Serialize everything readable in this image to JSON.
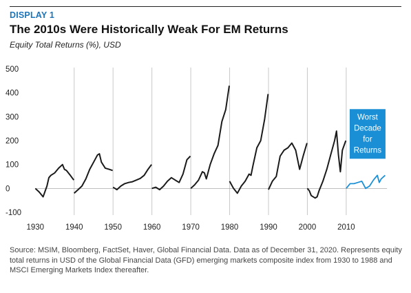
{
  "header": {
    "kicker": "DISPLAY 1",
    "title": "The 2010s Were Historically Weak For EM Returns",
    "subtitle": "Equity Total Returns (%), USD"
  },
  "footer": {
    "source": "Source: MSIM, Bloomberg, FactSet, Haver, Global Financial Data. Data as of December 31, 2020. Represents equity total returns in USD of the Global Financial Data (GFD) emerging markets composite index from 1930 to 1988 and MSCI Emerging Markets Index thereafter."
  },
  "colors": {
    "series": "#1a1a1a",
    "highlight": "#1b8fd6",
    "callout_bg": "#1b8fd6",
    "divider": "#c8c8c8",
    "kicker": "#1b75bb"
  },
  "chart_data": {
    "type": "line",
    "title": "The 2010s Were Historically Weak For EM Returns",
    "ylabel": "Equity Total Returns (%), USD",
    "xlabel": "",
    "xlim": [
      1928,
      2021
    ],
    "ylim": [
      -100,
      500
    ],
    "x_ticks": [
      1930,
      1940,
      1950,
      1960,
      1970,
      1980,
      1990,
      2000,
      2010
    ],
    "y_ticks": [
      500,
      400,
      300,
      200,
      100,
      0,
      -100
    ],
    "grid": false,
    "decade_dividers": [
      1940,
      1950,
      1960,
      1970,
      1980,
      1990,
      2000,
      2010
    ],
    "annotation": {
      "text": [
        "Worst",
        "Decade",
        "for",
        "Returns"
      ],
      "anchor_x": 2015.5,
      "anchor_y": 130
    },
    "series": [
      {
        "decade": "1930s",
        "highlight": false,
        "x": [
          1930,
          1931,
          1932,
          1933,
          1933.5,
          1934,
          1935,
          1936,
          1937,
          1937.5,
          1938,
          1939,
          1939.9
        ],
        "y": [
          0,
          -15,
          -35,
          10,
          45,
          55,
          65,
          85,
          100,
          80,
          75,
          55,
          35
        ]
      },
      {
        "decade": "1940s",
        "highlight": false,
        "x": [
          1940,
          1941,
          1942,
          1943,
          1944,
          1945,
          1946,
          1946.5,
          1947,
          1948,
          1949,
          1949.9
        ],
        "y": [
          -20,
          -5,
          10,
          40,
          80,
          110,
          140,
          145,
          110,
          85,
          80,
          75
        ]
      },
      {
        "decade": "1950s",
        "highlight": false,
        "x": [
          1950,
          1950.5,
          1951,
          1952,
          1953,
          1954,
          1955,
          1956,
          1957,
          1958,
          1959,
          1959.9
        ],
        "y": [
          5,
          0,
          -5,
          10,
          20,
          25,
          28,
          35,
          42,
          55,
          80,
          100
        ]
      },
      {
        "decade": "1960s",
        "highlight": false,
        "x": [
          1960,
          1961,
          1962,
          1963,
          1964,
          1965,
          1966,
          1967,
          1968,
          1969,
          1969.9
        ],
        "y": [
          0,
          5,
          -5,
          10,
          30,
          45,
          35,
          25,
          60,
          120,
          135
        ]
      },
      {
        "decade": "1970s",
        "highlight": false,
        "x": [
          1970,
          1971,
          1972,
          1973,
          1973.5,
          1974,
          1975,
          1976,
          1977,
          1978,
          1979,
          1979.9
        ],
        "y": [
          0,
          15,
          35,
          70,
          65,
          40,
          100,
          145,
          180,
          280,
          330,
          430
        ]
      },
      {
        "decade": "1980s",
        "highlight": false,
        "x": [
          1980,
          1981,
          1982,
          1983,
          1984,
          1985,
          1985.5,
          1986,
          1987,
          1988,
          1989,
          1989.9
        ],
        "y": [
          30,
          0,
          -20,
          10,
          30,
          60,
          55,
          95,
          170,
          200,
          290,
          395
        ]
      },
      {
        "decade": "1990s",
        "highlight": false,
        "x": [
          1990,
          1991,
          1992,
          1993,
          1994,
          1995,
          1996,
          1997,
          1998,
          1999,
          1999.9
        ],
        "y": [
          -5,
          30,
          50,
          135,
          160,
          170,
          190,
          160,
          80,
          140,
          190
        ]
      },
      {
        "decade": "2000s",
        "highlight": false,
        "x": [
          2000,
          2000.5,
          2001,
          2002,
          2002.5,
          2003,
          2004,
          2005,
          2006,
          2007,
          2007.5,
          2008,
          2008.5,
          2009,
          2009.9
        ],
        "y": [
          0,
          -10,
          -30,
          -40,
          -35,
          -10,
          30,
          80,
          140,
          200,
          240,
          140,
          70,
          160,
          200
        ]
      },
      {
        "decade": "2010s",
        "highlight": true,
        "x": [
          2010,
          2011,
          2012,
          2013,
          2014,
          2015,
          2016,
          2017,
          2018,
          2018.5,
          2019,
          2020
        ],
        "y": [
          0,
          20,
          20,
          25,
          30,
          0,
          10,
          35,
          55,
          25,
          40,
          55
        ]
      }
    ]
  }
}
